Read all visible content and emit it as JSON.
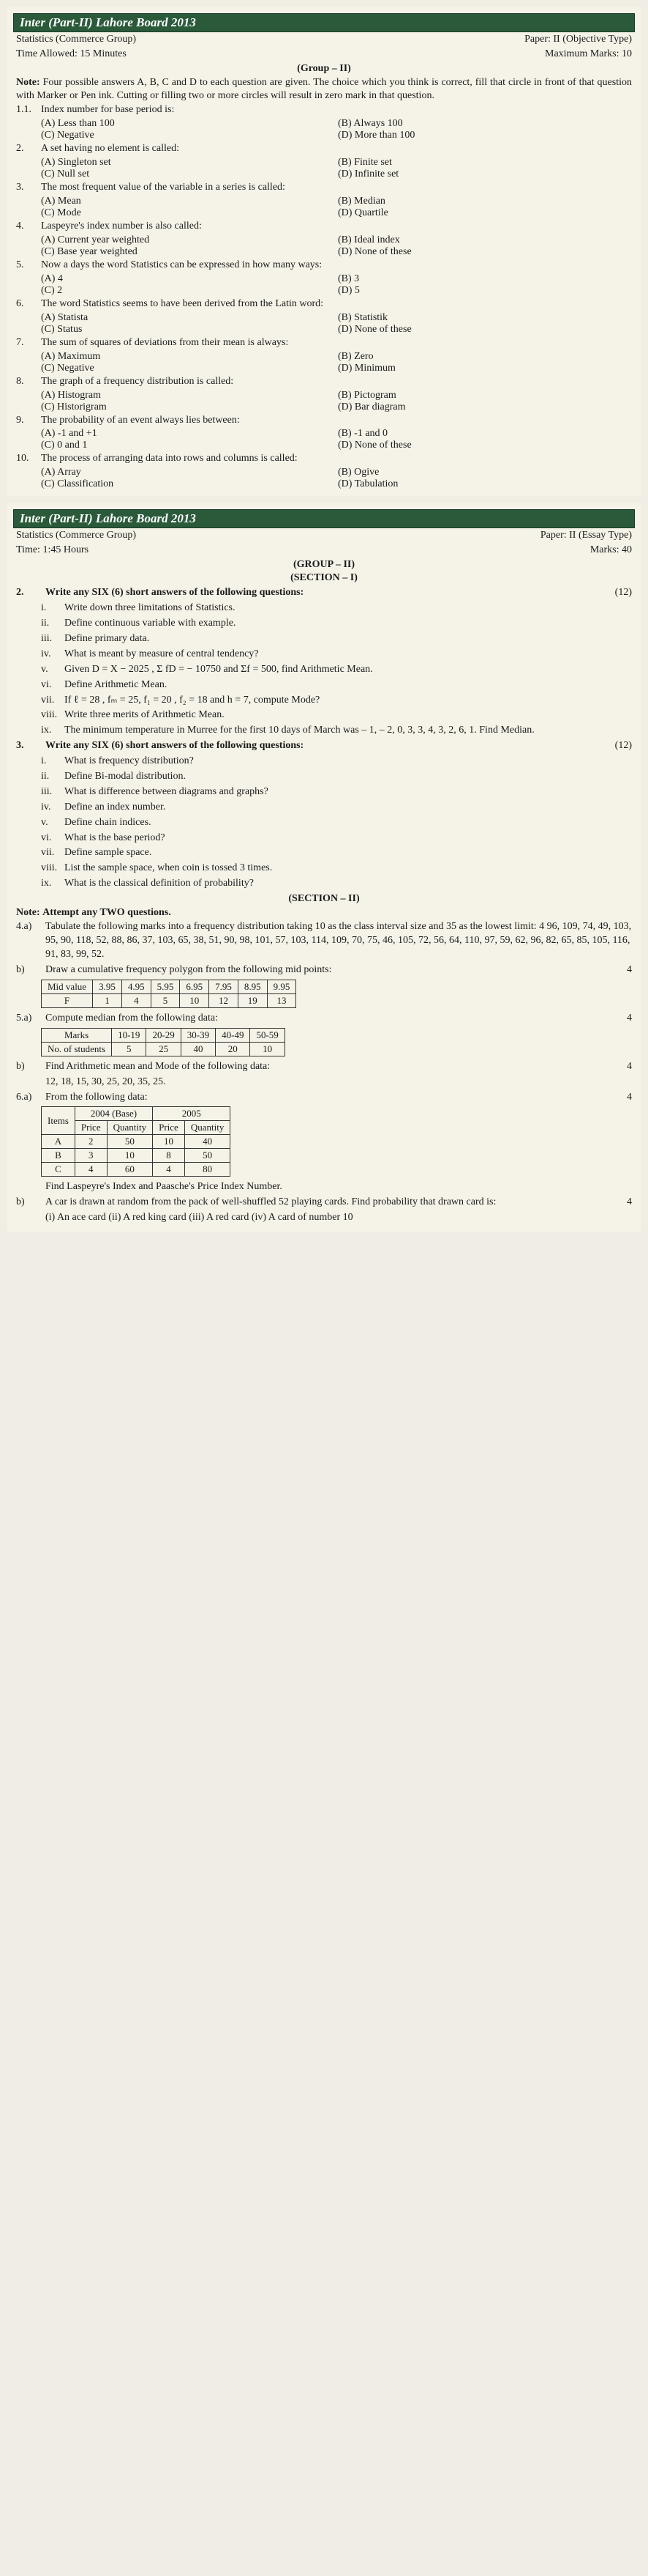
{
  "paper1": {
    "header": "Inter (Part-II) Lahore Board 2013",
    "meta_left1": "Statistics (Commerce Group)",
    "meta_right1": "Paper: II (Objective Type)",
    "meta_left2": "Time Allowed: 15 Minutes",
    "meta_right2": "Maximum Marks: 10",
    "group": "(Group – II)",
    "note_label": "Note:",
    "note_text": "Four possible answers A, B, C and D to each question are given. The choice which you think is correct, fill that circle in front of that question with Marker or Pen ink. Cutting or filling two or more circles will result in zero mark in that question.",
    "mcq": [
      {
        "n": "1.1.",
        "t": "Index number for base period is:",
        "o": [
          "(A) Less than 100",
          "(B) Always 100",
          "(C) Negative",
          "(D) More than 100"
        ]
      },
      {
        "n": "2.",
        "t": "A set having no element is called:",
        "o": [
          "(A) Singleton set",
          "(B) Finite set",
          "(C) Null set",
          "(D) Infinite set"
        ]
      },
      {
        "n": "3.",
        "t": "The most frequent value of the variable in a series is called:",
        "o": [
          "(A) Mean",
          "(B) Median",
          "(C) Mode",
          "(D) Quartile"
        ]
      },
      {
        "n": "4.",
        "t": "Laspeyre's index number is also called:",
        "o": [
          "(A) Current year weighted",
          "(B) Ideal index",
          "(C) Base year weighted",
          "(D) None of these"
        ]
      },
      {
        "n": "5.",
        "t": "Now a days the word Statistics can be expressed in how many ways:",
        "o": [
          "(A) 4",
          "(B) 3",
          "(C) 2",
          "(D) 5"
        ]
      },
      {
        "n": "6.",
        "t": "The word Statistics seems to have been derived from the Latin word:",
        "o": [
          "(A) Statista",
          "(B) Statistik",
          "(C) Status",
          "(D) None of these"
        ]
      },
      {
        "n": "7.",
        "t": "The sum of squares of deviations from their mean is always:",
        "o": [
          "(A) Maximum",
          "(B) Zero",
          "(C) Negative",
          "(D) Minimum"
        ]
      },
      {
        "n": "8.",
        "t": "The graph of a frequency distribution is called:",
        "o": [
          "(A) Histogram",
          "(B) Pictogram",
          "(C) Historigram",
          "(D) Bar diagram"
        ]
      },
      {
        "n": "9.",
        "t": "The probability of an event always lies between:",
        "o": [
          "(A) -1 and +1",
          "(B) -1 and 0",
          "(C) 0 and 1",
          "(D) None of these"
        ]
      },
      {
        "n": "10.",
        "t": "The process of arranging data into rows and columns is called:",
        "o": [
          "(A) Array",
          "(B) Ogive",
          "(C) Classification",
          "(D) Tabulation"
        ]
      }
    ]
  },
  "paper2": {
    "header": "Inter (Part-II) Lahore Board 2013",
    "meta_left1": "Statistics (Commerce Group)",
    "meta_right1": "Paper: II (Essay Type)",
    "meta_left2": "Time: 1:45 Hours",
    "meta_right2": "Marks: 40",
    "group": "(GROUP – II)",
    "section1": "(SECTION – I)",
    "q2": {
      "n": "2.",
      "t": "Write any SIX (6) short answers of the following questions:",
      "m": "(12)",
      "subs": [
        {
          "n": "i.",
          "t": "Write down three limitations of Statistics."
        },
        {
          "n": "ii.",
          "t": "Define continuous variable with example."
        },
        {
          "n": "iii.",
          "t": "Define primary data."
        },
        {
          "n": "iv.",
          "t": "What is meant by measure of central tendency?"
        },
        {
          "n": "v.",
          "t": "Given D = X − 2025 , Σ fD = − 10750 and Σf = 500, find Arithmetic Mean."
        },
        {
          "n": "vi.",
          "t": "Define Arithmetic Mean."
        },
        {
          "n": "vii.",
          "t": "If ℓ = 28 , fₘ = 25, f₁ = 20 , f₂ = 18 and h = 7, compute Mode?"
        },
        {
          "n": "viii.",
          "t": "Write three merits of Arithmetic Mean."
        },
        {
          "n": "ix.",
          "t": "The minimum temperature in Murree for the first 10 days of March was – 1, – 2, 0, 3, 3, 4, 3, 2, 6, 1. Find Median."
        }
      ]
    },
    "q3": {
      "n": "3.",
      "t": "Write any SIX (6) short answers of the following questions:",
      "m": "(12)",
      "subs": [
        {
          "n": "i.",
          "t": "What is frequency distribution?"
        },
        {
          "n": "ii.",
          "t": "Define Bi-modal distribution."
        },
        {
          "n": "iii.",
          "t": "What is difference between diagrams and graphs?"
        },
        {
          "n": "iv.",
          "t": "Define an index number."
        },
        {
          "n": "v.",
          "t": "Define chain indices."
        },
        {
          "n": "vi.",
          "t": "What is the base period?"
        },
        {
          "n": "vii.",
          "t": "Define sample space."
        },
        {
          "n": "viii.",
          "t": "List the sample space, when coin is tossed 3 times."
        },
        {
          "n": "ix.",
          "t": "What is the classical definition of probability?"
        }
      ]
    },
    "section2": "(SECTION – II)",
    "section2_note_label": "Note:",
    "section2_note": "Attempt any TWO questions.",
    "q4a": {
      "n": "4.a)",
      "t": "Tabulate the following marks into a frequency distribution taking 10 as the class interval size and 35 as the lowest limit: 4 96, 109, 74, 49, 103, 95, 90, 118, 52, 88, 86, 37, 103, 65, 38, 51, 90, 98, 101, 57, 103, 114, 109, 70, 75, 46, 105, 72, 56, 64, 110, 97, 59, 62, 96, 82, 65, 85, 105, 116, 91, 83, 99, 52."
    },
    "q4b": {
      "n": "b)",
      "t": "Draw a cumulative frequency polygon from the following mid points:",
      "m": "4",
      "table": {
        "r1": [
          "Mid value",
          "3.95",
          "4.95",
          "5.95",
          "6.95",
          "7.95",
          "8.95",
          "9.95"
        ],
        "r2": [
          "F",
          "1",
          "4",
          "5",
          "10",
          "12",
          "19",
          "13"
        ]
      }
    },
    "q5a": {
      "n": "5.a)",
      "t": "Compute median from the following data:",
      "m": "4",
      "table": {
        "r1": [
          "Marks",
          "10-19",
          "20-29",
          "30-39",
          "40-49",
          "50-59"
        ],
        "r2": [
          "No. of students",
          "5",
          "25",
          "40",
          "20",
          "10"
        ]
      }
    },
    "q5b": {
      "n": "b)",
      "t": "Find Arithmetic mean and Mode of the following data:",
      "data": "12, 18, 15, 30, 25, 20, 35, 25.",
      "m": "4"
    },
    "q6a": {
      "n": "6.a)",
      "t": "From the following data:",
      "m": "4",
      "table": {
        "header": [
          "",
          "2004 (Base)",
          "2005"
        ],
        "subheader": [
          "Items",
          "Price",
          "Quantity",
          "Price",
          "Quantity"
        ],
        "rows": [
          [
            "A",
            "2",
            "50",
            "10",
            "40"
          ],
          [
            "B",
            "3",
            "10",
            "8",
            "50"
          ],
          [
            "C",
            "4",
            "60",
            "4",
            "80"
          ]
        ]
      },
      "t2": "Find Laspeyre's Index and Paasche's Price Index Number."
    },
    "q6b": {
      "n": "b)",
      "t": "A car is drawn at random from the pack of well-shuffled 52 playing cards. Find probability that drawn card is:",
      "m": "4",
      "t2": "(i) An ace card (ii) A red king card (iii) A red card (iv) A card of number 10"
    }
  }
}
